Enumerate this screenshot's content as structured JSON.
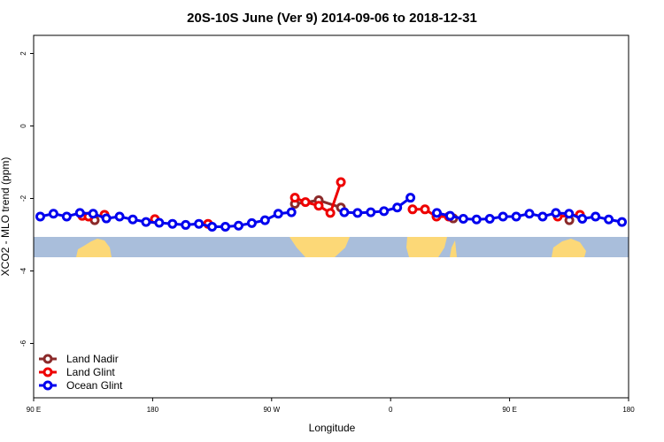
{
  "chart_data": {
    "type": "line",
    "title": "20S-10S June (Ver 9)   2014-09-06 to 2018-12-31",
    "x_label": "Longitude",
    "y_label": "XCO2 - MLO trend (ppm)",
    "xlim": [
      90,
      540
    ],
    "ylim": [
      -7.5,
      2.5
    ],
    "xticks": [
      {
        "value": 90,
        "label": "90 E"
      },
      {
        "value": 180,
        "label": "180"
      },
      {
        "value": 270,
        "label": "90 W"
      },
      {
        "value": 360,
        "label": "0"
      },
      {
        "value": 450,
        "label": "90 E"
      },
      {
        "value": 540,
        "label": "180"
      }
    ],
    "yticks": [
      -6,
      -4,
      -2,
      0,
      2
    ],
    "legend": "bottom-left",
    "series": [
      {
        "name": "Land Nadir",
        "color": "#8b2a2a",
        "x": [
          136.2,
          null,
          287.6,
          305.6,
          322.4,
          null,
          407.4,
          null,
          495.2
        ],
        "values": [
          -2.6,
          null,
          -2.15,
          -2.05,
          -2.25,
          null,
          -2.55,
          null,
          -2.6
        ]
      },
      {
        "name": "Land Glint",
        "color": "#ee0000",
        "x": [
          126.8,
          131.5,
          null,
          143.6,
          null,
          181.7,
          null,
          221.9,
          null,
          287.6,
          295.6,
          305.6,
          314.4,
          322.4,
          null,
          376.6,
          386,
          394.7,
          404,
          null,
          486.4,
          503.2
        ],
        "values": [
          -2.48,
          -2.5,
          null,
          -2.45,
          null,
          -2.57,
          null,
          -2.7,
          null,
          -1.98,
          -2.1,
          -2.2,
          -2.4,
          -1.55,
          null,
          -2.3,
          -2.3,
          -2.5,
          -2.5,
          null,
          -2.5,
          -2.45
        ]
      },
      {
        "name": "Ocean Glint",
        "color": "#0000ee",
        "x": [
          95,
          105,
          115,
          125,
          135,
          145,
          155,
          165,
          175,
          185,
          195,
          205,
          215,
          225,
          235,
          245,
          255,
          265,
          275,
          285,
          null,
          325,
          335,
          345,
          355,
          365,
          375,
          null,
          395,
          405,
          415,
          425,
          435,
          445,
          455,
          465,
          475,
          485,
          495,
          505,
          515,
          525,
          535
        ],
        "values": [
          -2.5,
          -2.42,
          -2.5,
          -2.4,
          -2.42,
          -2.55,
          -2.5,
          -2.58,
          -2.65,
          -2.67,
          -2.7,
          -2.73,
          -2.7,
          -2.78,
          -2.78,
          -2.75,
          -2.68,
          -2.6,
          -2.42,
          -2.38,
          null,
          -2.38,
          -2.4,
          -2.38,
          -2.35,
          -2.25,
          -1.98,
          null,
          -2.4,
          -2.48,
          -2.56,
          -2.58,
          -2.56,
          -2.5,
          -2.5,
          -2.42,
          -2.5,
          -2.4,
          -2.42,
          -2.56,
          -2.5,
          -2.58,
          -2.65
        ]
      }
    ]
  }
}
